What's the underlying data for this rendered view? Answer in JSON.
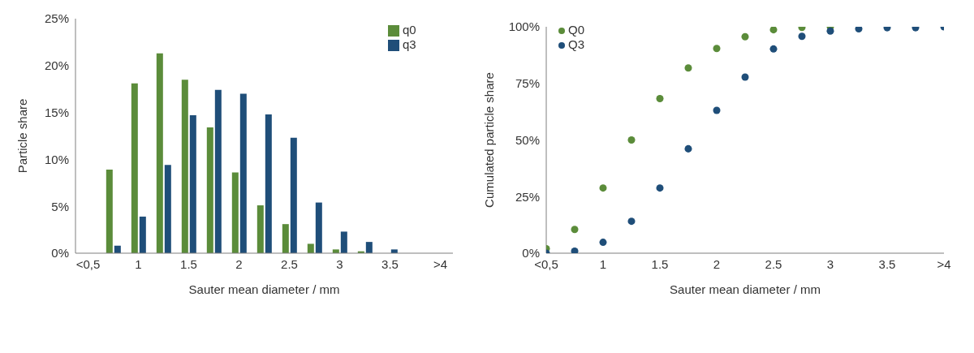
{
  "chart_data": [
    {
      "type": "bar",
      "xlabel": "Sauter mean diameter / mm",
      "ylabel": "Particle share",
      "categories": [
        "<0,5",
        null,
        "1",
        null,
        "1.5",
        null,
        "2",
        null,
        "2.5",
        null,
        "3",
        null,
        "3.5",
        null,
        ">4"
      ],
      "series": [
        {
          "name": "q0",
          "color": "#5b8c3a",
          "values": [
            null,
            8.9,
            18.1,
            21.3,
            18.5,
            13.4,
            8.6,
            5.1,
            3.1,
            1.0,
            0.4,
            0.2,
            null,
            null,
            null
          ]
        },
        {
          "name": "q3",
          "color": "#1f4e79",
          "values": [
            null,
            0.8,
            3.9,
            9.4,
            14.7,
            17.4,
            17.0,
            14.8,
            12.3,
            5.4,
            2.3,
            1.2,
            0.4,
            null,
            null
          ]
        }
      ],
      "ylim": [
        0,
        25
      ],
      "yticks": [
        {
          "value": 0,
          "label": "0%"
        },
        {
          "value": 5,
          "label": "5%"
        },
        {
          "value": 10,
          "label": "10%"
        },
        {
          "value": 15,
          "label": "15%"
        },
        {
          "value": 20,
          "label": "20%"
        },
        {
          "value": 25,
          "label": "25%"
        }
      ],
      "legend": "top right",
      "grid": false
    },
    {
      "type": "scatter",
      "xlabel": "Sauter mean diameter / mm",
      "ylabel": "Cumulated particle share",
      "x": [
        0.5,
        0.75,
        1,
        1.25,
        1.5,
        1.75,
        2,
        2.25,
        2.5,
        2.75,
        3,
        3.25,
        3.5,
        3.75,
        4
      ],
      "series": [
        {
          "name": "Q0",
          "color": "#5b8c3a",
          "values": [
            2,
            10.5,
            28.8,
            50,
            68.3,
            81.8,
            90.4,
            95.6,
            98.7,
            99.7,
            100,
            null,
            null,
            null,
            null
          ]
        },
        {
          "name": "Q3",
          "color": "#1f4e79",
          "values": [
            0,
            0.9,
            4.8,
            14.1,
            28.8,
            46.1,
            63.1,
            77.8,
            90.2,
            95.8,
            98.1,
            99.1,
            99.6,
            99.6,
            100
          ]
        }
      ],
      "xlim": [
        0.5,
        4
      ],
      "xticks": [
        {
          "value": 0.5,
          "label": "<0,5"
        },
        1,
        1.5,
        2,
        2.5,
        3,
        3.5,
        {
          "value": 4,
          "label": ">4"
        }
      ],
      "ylim": [
        0,
        100
      ],
      "yticks": [
        {
          "value": 0,
          "label": "0%"
        },
        {
          "value": 25,
          "label": "25%"
        },
        {
          "value": 50,
          "label": "50%"
        },
        {
          "value": 75,
          "label": "75%"
        },
        {
          "value": 100,
          "label": "100%"
        }
      ],
      "legend": "top left",
      "marker": "circle",
      "grid": false
    }
  ]
}
